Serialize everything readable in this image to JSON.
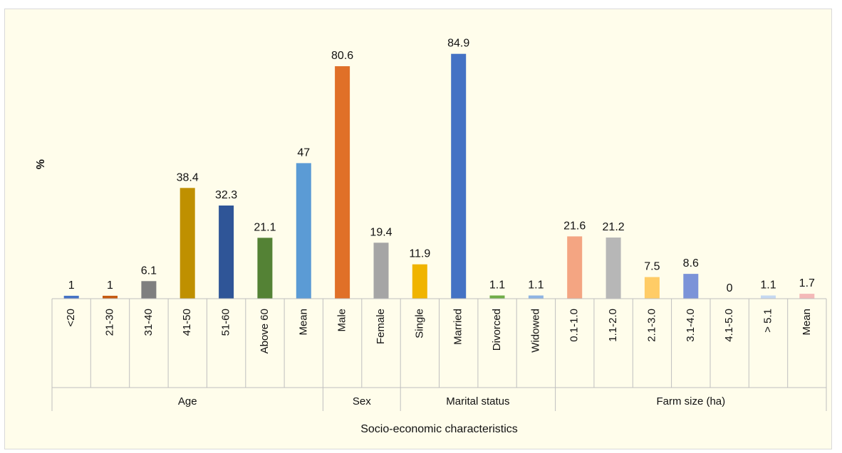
{
  "chart_data": {
    "type": "bar",
    "ylabel": "%",
    "xlabel": "Socio-economic characteristics",
    "ylim": [
      0,
      90
    ],
    "grid": false,
    "legend": "none",
    "groups": [
      {
        "name": "Age",
        "bars": [
          {
            "category": "<20",
            "value": 1,
            "color": "#4472c4"
          },
          {
            "category": "21-30",
            "value": 1,
            "color": "#c55a11"
          },
          {
            "category": "31-40",
            "value": 6.1,
            "color": "#7f7f7f"
          },
          {
            "category": "41-50",
            "value": 38.4,
            "color": "#bf9000"
          },
          {
            "category": "51-60",
            "value": 32.3,
            "color": "#2f5597"
          },
          {
            "category": "Above 60",
            "value": 21.1,
            "color": "#548235"
          },
          {
            "category": "Mean",
            "value": 47,
            "color": "#5b9bd5"
          }
        ]
      },
      {
        "name": "Sex",
        "bars": [
          {
            "category": "Male",
            "value": 80.6,
            "color": "#e07028"
          },
          {
            "category": "Female",
            "value": 19.4,
            "color": "#a5a5a5"
          }
        ]
      },
      {
        "name": "Marital status",
        "bars": [
          {
            "category": "Single",
            "value": 11.9,
            "color": "#f0b400"
          },
          {
            "category": "Married",
            "value": 84.9,
            "color": "#4472c4"
          },
          {
            "category": "Divorced",
            "value": 1.1,
            "color": "#70ad47"
          },
          {
            "category": "Widowed",
            "value": 1.1,
            "color": "#8fb4e3"
          }
        ]
      },
      {
        "name": "Farm size (ha)",
        "bars": [
          {
            "category": "0.1-1.0",
            "value": 21.6,
            "color": "#f4a582"
          },
          {
            "category": "1.1-2.0",
            "value": 21.2,
            "color": "#b7b7b7"
          },
          {
            "category": "2.1-3.0",
            "value": 7.5,
            "color": "#ffcc66"
          },
          {
            "category": "3.1-4.0",
            "value": 8.6,
            "color": "#7b93d8"
          },
          {
            "category": "4.1-5.0",
            "value": 0,
            "color": "#a9c47f"
          },
          {
            "category": "> 5.1",
            "value": 1.1,
            "color": "#c5d9f1"
          },
          {
            "category": "Mean",
            "value": 1.7,
            "color": "#f4b9b8"
          }
        ]
      }
    ]
  }
}
